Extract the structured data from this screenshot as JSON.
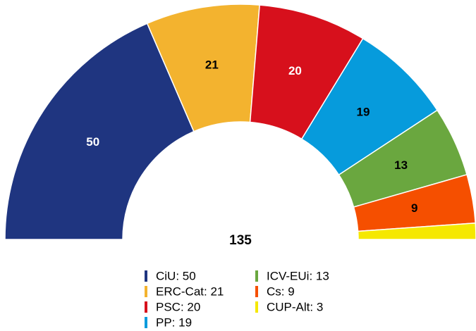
{
  "chart_data": {
    "type": "semicircle-donut",
    "categories": [
      "CiU: 50",
      "ERC-Cat: 21",
      "PSC: 20",
      "PP: 19",
      "ICV-EUi: 13",
      "Cs: 9",
      "CUP-Alt: 3"
    ],
    "values": [
      50,
      21,
      20,
      19,
      13,
      9,
      3
    ],
    "colors": [
      "#1f3580",
      "#f3b32f",
      "#d7101c",
      "#069bdc",
      "#6aa73f",
      "#f54f00",
      "#f5e800"
    ],
    "label_colors": [
      "#ffffff",
      "#000000",
      "#ffffff",
      "#000000",
      "#000000",
      "#000000",
      "#000000"
    ],
    "show_labels": [
      true,
      true,
      true,
      true,
      true,
      true,
      false
    ],
    "total": 135
  }
}
